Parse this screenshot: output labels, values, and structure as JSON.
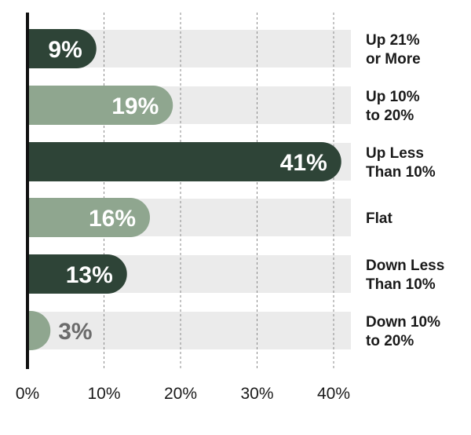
{
  "chart_data": {
    "type": "bar",
    "orientation": "horizontal",
    "categories": [
      [
        "Up 21%",
        "or More"
      ],
      [
        "Up 10%",
        "to 20%"
      ],
      [
        "Up Less",
        "Than 10%"
      ],
      [
        "Flat"
      ],
      [
        "Down Less",
        "Than 10%"
      ],
      [
        "Down 10%",
        "to 20%"
      ]
    ],
    "values": [
      9,
      19,
      41,
      16,
      13,
      3
    ],
    "data_labels": [
      "9%",
      "19%",
      "41%",
      "16%",
      "13%",
      "3%"
    ],
    "bar_colors": [
      "#2e4437",
      "#8fa68f",
      "#2e4437",
      "#8fa68f",
      "#2e4437",
      "#8fa68f"
    ],
    "label_colors": [
      "#ffffff",
      "#ffffff",
      "#ffffff",
      "#ffffff",
      "#ffffff",
      "#6b6b6b"
    ],
    "track_color": "#ebebeb",
    "xlim": [
      0,
      40
    ],
    "xticks": [
      0,
      10,
      20,
      30,
      40
    ],
    "xtick_labels": [
      "0%",
      "10%",
      "20%",
      "30%",
      "40%"
    ],
    "grid": "vertical dashed",
    "title": "",
    "xlabel": "",
    "ylabel": ""
  }
}
